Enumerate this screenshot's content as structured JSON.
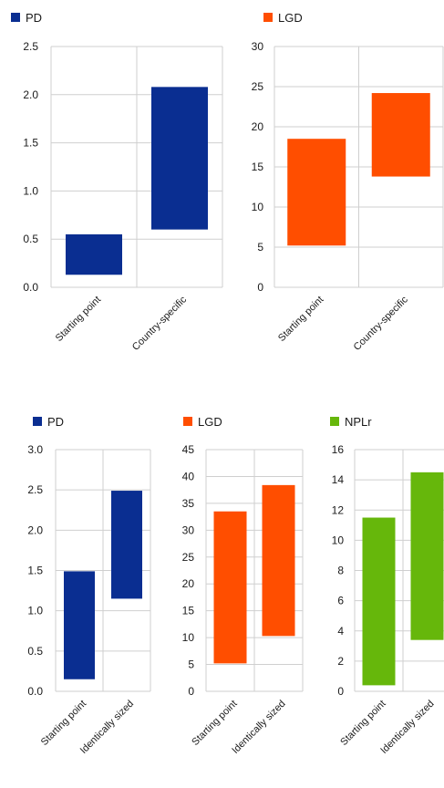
{
  "chart_data": [
    {
      "type": "bar",
      "legend": "PD",
      "color": "#0a2e91",
      "categories": [
        "Starting point",
        "Country-specific"
      ],
      "ranges": [
        [
          0.13,
          0.55
        ],
        [
          0.6,
          2.08
        ]
      ],
      "yticks": [
        "0.0",
        "0.5",
        "1.0",
        "1.5",
        "2.0",
        "2.5"
      ],
      "ylim": [
        0,
        2.5
      ]
    },
    {
      "type": "bar",
      "legend": "LGD",
      "color": "#ff4e00",
      "categories": [
        "Starting point",
        "Country-specific"
      ],
      "ranges": [
        [
          5.2,
          18.5
        ],
        [
          13.8,
          24.2
        ]
      ],
      "yticks": [
        "0",
        "5",
        "10",
        "15",
        "20",
        "25",
        "30"
      ],
      "ylim": [
        0,
        30
      ]
    },
    {
      "type": "bar",
      "legend": "PD",
      "color": "#0a2e91",
      "categories": [
        "Starting point",
        "Identically sized"
      ],
      "ranges": [
        [
          0.15,
          1.49
        ],
        [
          1.15,
          2.49
        ]
      ],
      "yticks": [
        "0.0",
        "0.5",
        "1.0",
        "1.5",
        "2.0",
        "2.5",
        "3.0"
      ],
      "ylim": [
        0,
        3.0
      ]
    },
    {
      "type": "bar",
      "legend": "LGD",
      "color": "#ff4e00",
      "categories": [
        "Starting point",
        "Identically sized"
      ],
      "ranges": [
        [
          5.2,
          33.5
        ],
        [
          10.3,
          38.4
        ]
      ],
      "yticks": [
        "0",
        "5",
        "10",
        "15",
        "20",
        "25",
        "30",
        "35",
        "40",
        "45"
      ],
      "ylim": [
        0,
        45
      ]
    },
    {
      "type": "bar",
      "legend": "NPLr",
      "color": "#66b70b",
      "categories": [
        "Starting point",
        "Identically sized"
      ],
      "ranges": [
        [
          0.4,
          11.5
        ],
        [
          3.4,
          14.5
        ]
      ],
      "yticks": [
        "0",
        "2",
        "4",
        "6",
        "8",
        "10",
        "12",
        "14",
        "16"
      ],
      "ylim": [
        0,
        16
      ]
    }
  ]
}
